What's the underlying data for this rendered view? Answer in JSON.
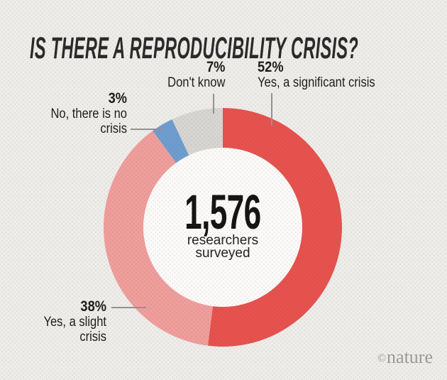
{
  "chart_data": {
    "type": "pie",
    "donut": true,
    "title": "IS THERE A REPRODUCIBILITY CRISIS?",
    "start_angle_deg_from_top": 0,
    "direction": "clockwise",
    "segments": [
      {
        "id": "yes-significant",
        "label": "Yes, a significant crisis",
        "pct_label": "52%",
        "value": 52,
        "color": "#e7524e"
      },
      {
        "id": "yes-slight",
        "label": "Yes, a slight crisis",
        "pct_label": "38%",
        "value": 38,
        "color": "#f09e9c"
      },
      {
        "id": "no-crisis",
        "label": "No, there is no crisis",
        "pct_label": "3%",
        "value": 3,
        "color": "#6e9dd0"
      },
      {
        "id": "dont-know",
        "label": "Don't know",
        "pct_label": "7%",
        "value": 7,
        "color": "#d7d6d3"
      }
    ],
    "center": {
      "value": "1,576",
      "line1": "researchers",
      "line2": "surveyed"
    },
    "legend_position": "callouts",
    "hole_color": "#fcfbf9"
  },
  "branding": {
    "symbol": "©",
    "name": "nature"
  },
  "colors": {
    "background": "#eeedea",
    "hole": "#fcfbf9",
    "label_text": "#1d1d1d",
    "leader": "#949494",
    "brand": "#9c9c9c"
  }
}
